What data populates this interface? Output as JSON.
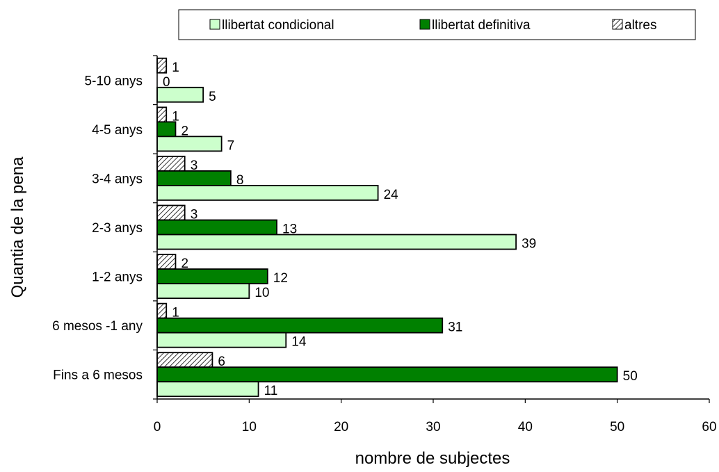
{
  "chart_data": {
    "type": "bar",
    "orientation": "horizontal",
    "categories": [
      "Fins a 6 mesos",
      "6 mesos -1 any",
      "1-2 anys",
      "2-3 anys",
      "3-4 anys",
      "4-5 anys",
      "5-10 anys"
    ],
    "series": [
      {
        "name": "llibertat condicional",
        "values": [
          11,
          14,
          10,
          39,
          24,
          7,
          5
        ]
      },
      {
        "name": "llibertat definitiva",
        "values": [
          50,
          31,
          12,
          13,
          8,
          2,
          0
        ]
      },
      {
        "name": "altres",
        "values": [
          6,
          1,
          2,
          3,
          3,
          1,
          1
        ]
      }
    ],
    "xlabel": "nombre de subjectes",
    "ylabel": "Quantia de la pena",
    "xlim": [
      0,
      60
    ],
    "xticks": [
      0,
      10,
      20,
      30,
      40,
      50,
      60
    ],
    "grid": false,
    "legend": "top",
    "data_labels": true,
    "colors": {
      "llibertat condicional": "#ccffcc",
      "llibertat definitiva": "#008000",
      "altres": "hatched"
    }
  }
}
